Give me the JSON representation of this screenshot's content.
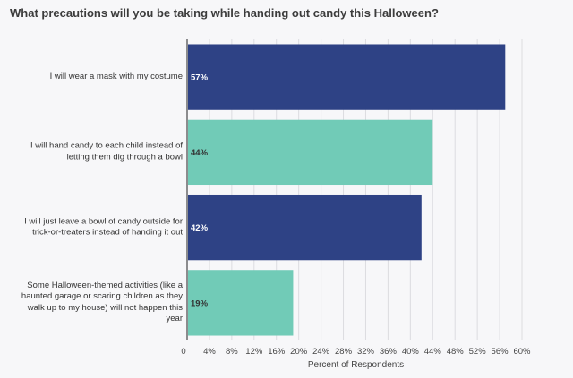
{
  "title": "What precautions will you be taking while handing out candy this Halloween?",
  "chart_data": {
    "type": "bar",
    "orientation": "horizontal",
    "title": "What precautions will you be taking while handing out candy this Halloween?",
    "xlabel": "Percent of Respondents",
    "ylabel": "",
    "categories": [
      "I will wear a mask with my costume",
      "I will hand candy to each child instead of letting them dig through a bowl",
      "I will just leave a bowl of candy outside for trick-or-treaters instead of handing it out",
      "Some Halloween-themed activities (like a haunted garage or scaring children as they walk up to my house) will not happen this year"
    ],
    "category_lines": [
      [
        "I will wear a mask with my costume"
      ],
      [
        "I will hand candy to each child instead of",
        "letting them dig through a bowl"
      ],
      [
        "I will just leave a bowl of candy outside for",
        "trick-or-treaters instead of handing it out"
      ],
      [
        "Some Halloween-themed activities (like a",
        "haunted garage or scaring children as they",
        "walk up to my house) will not happen this",
        "year"
      ]
    ],
    "values": [
      57,
      44,
      42,
      19
    ],
    "data_labels": [
      "57%",
      "44%",
      "42%",
      "19%"
    ],
    "bar_colors": [
      "#2e4285",
      "#71cbb7",
      "#2e4285",
      "#71cbb7"
    ],
    "label_colors": [
      "#ffffff",
      "#333333",
      "#ffffff",
      "#333333"
    ],
    "xlim": [
      0,
      60
    ],
    "xticks": [
      "0",
      "4%",
      "8%",
      "12%",
      "16%",
      "20%",
      "24%",
      "28%",
      "32%",
      "36%",
      "40%",
      "44%",
      "48%",
      "52%",
      "56%",
      "60%"
    ],
    "xtick_values": [
      0,
      4,
      8,
      12,
      16,
      20,
      24,
      28,
      32,
      36,
      40,
      44,
      48,
      52,
      56,
      60
    ],
    "grid": true,
    "legend": "none"
  }
}
